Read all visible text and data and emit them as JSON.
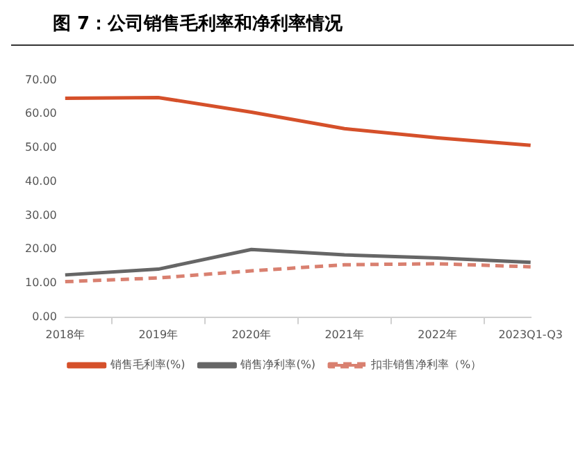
{
  "chart_data": {
    "type": "line",
    "title": "图 7：公司销售毛利率和净利率情况",
    "categories": [
      "2018年",
      "2019年",
      "2020年",
      "2021年",
      "2022年",
      "2023Q1-Q3"
    ],
    "series": [
      {
        "name": "销售毛利率(%)",
        "color": "#d5502a",
        "values": [
          64.7,
          64.9,
          60.6,
          55.7,
          53.0,
          50.8
        ]
      },
      {
        "name": "销售净利率(%)",
        "color": "#666666",
        "values": [
          12.5,
          14.2,
          20.0,
          18.4,
          17.5,
          16.2
        ]
      },
      {
        "name": "扣非销售净利率（%）",
        "color": "#d98070",
        "values": [
          10.5,
          11.6,
          13.7,
          15.5,
          15.8,
          14.9
        ],
        "line_style": "dashed"
      }
    ],
    "ylim": [
      0,
      70
    ],
    "yticks": [
      {
        "value": 0,
        "label": "0.00"
      },
      {
        "value": 10,
        "label": "10.00"
      },
      {
        "value": 20,
        "label": "20.00"
      },
      {
        "value": 30,
        "label": "30.00"
      },
      {
        "value": 40,
        "label": "40.00"
      },
      {
        "value": 50,
        "label": "50.00"
      },
      {
        "value": 60,
        "label": "60.00"
      },
      {
        "value": 70,
        "label": "70.00"
      }
    ],
    "grid": false,
    "legend": "bottom",
    "marker": "none"
  }
}
